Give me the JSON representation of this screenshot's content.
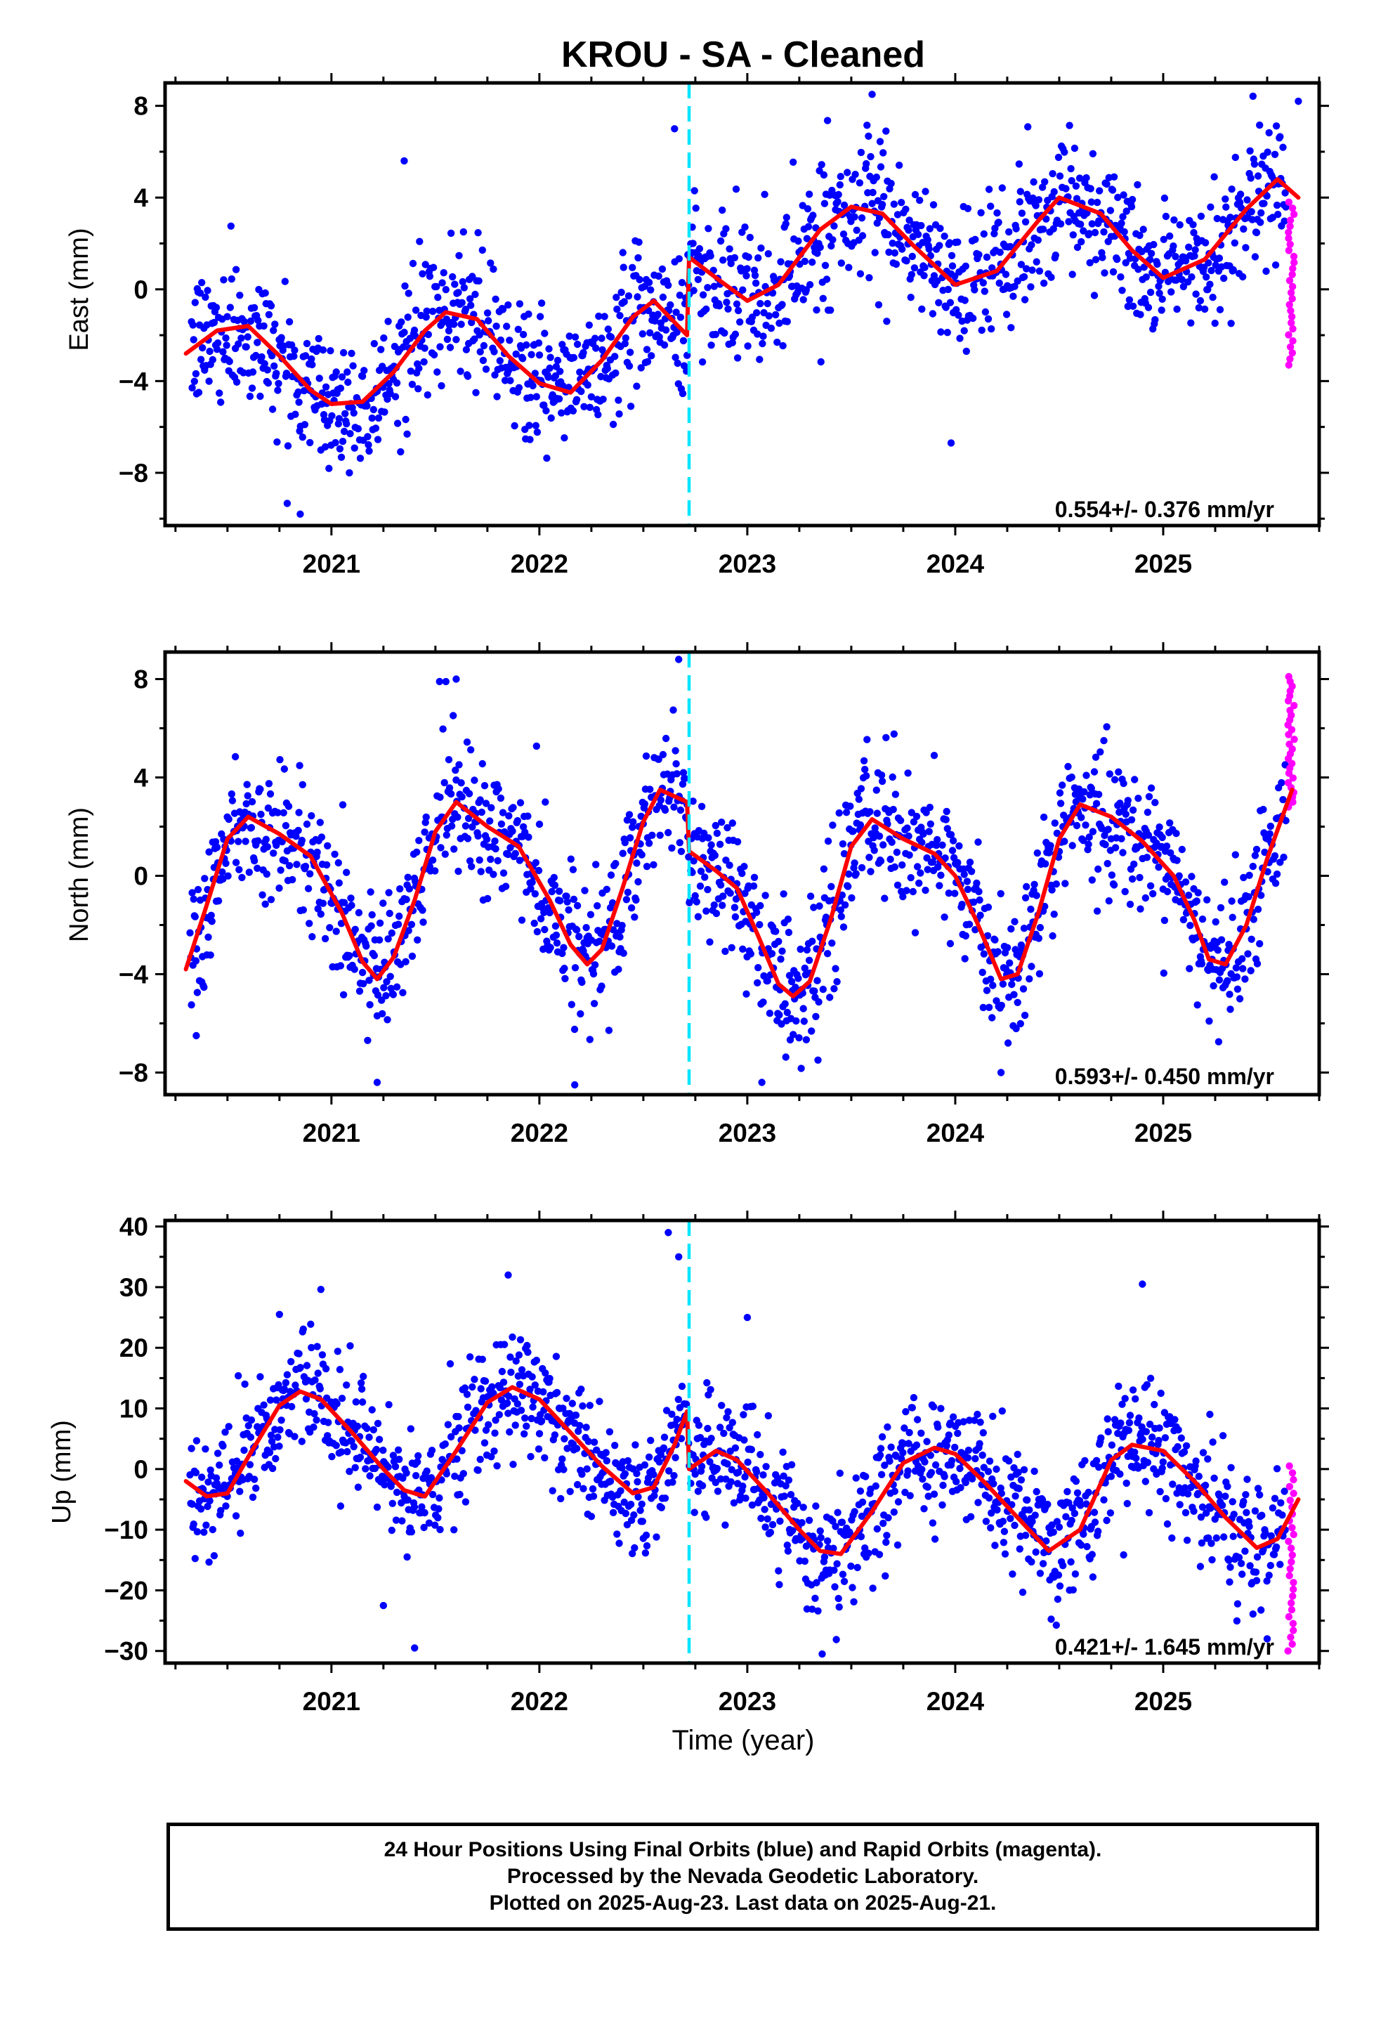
{
  "title": "KROU  - SA - Cleaned",
  "xlabel": "Time (year)",
  "footer": [
    "24 Hour Positions Using Final Orbits (blue) and Rapid Orbits (magenta).",
    "Processed by the Nevada Geodetic Laboratory.",
    "Plotted on 2025-Aug-23. Last data on 2025-Aug-21."
  ],
  "colors": {
    "final": "#0000ff",
    "rapid": "#ff00ff",
    "model": "#ff0000",
    "event": "#00e5ff"
  },
  "chart_data": [
    {
      "type": "scatter",
      "ylabel": "East (mm)",
      "xlim": [
        2020.2,
        2025.75
      ],
      "ylim": [
        -10.3,
        9
      ],
      "xticks": [
        2021,
        2022,
        2023,
        2024,
        2025
      ],
      "yticks": [
        -8,
        -4,
        0,
        4,
        8
      ],
      "yticklabels": [
        "−8",
        "−4",
        "0",
        "4",
        "8"
      ],
      "rate": "0.554+/- 0.376 mm/yr",
      "event_line_x": 2022.72,
      "model": {
        "x": [
          2020.3,
          2020.45,
          2020.6,
          2020.75,
          2020.9,
          2021.0,
          2021.15,
          2021.3,
          2021.45,
          2021.55,
          2021.7,
          2021.85,
          2022.0,
          2022.15,
          2022.3,
          2022.45,
          2022.55,
          2022.71,
          2022.72,
          2022.85,
          2023.0,
          2023.15,
          2023.35,
          2023.5,
          2023.65,
          2023.8,
          2024.0,
          2024.2,
          2024.4,
          2024.5,
          2024.7,
          2024.85,
          2025.0,
          2025.2,
          2025.4,
          2025.55,
          2025.65
        ],
        "y": [
          -2.8,
          -1.8,
          -1.6,
          -2.9,
          -4.4,
          -5.0,
          -4.9,
          -3.6,
          -1.8,
          -1.0,
          -1.3,
          -2.9,
          -4.1,
          -4.5,
          -3.1,
          -1.2,
          -0.5,
          -2.0,
          1.4,
          0.5,
          -0.5,
          0.2,
          2.6,
          3.6,
          3.3,
          1.9,
          0.2,
          0.8,
          3.0,
          4.0,
          3.3,
          1.7,
          0.5,
          1.3,
          3.5,
          4.8,
          4.0
        ]
      },
      "final": {
        "amp": 2.1,
        "phase": 0.0,
        "trend": [
          -3.3,
          2.5
        ],
        "noise": 1.5,
        "outliers": [
          [
            2021.35,
            5.6
          ],
          [
            2022.65,
            7.0
          ],
          [
            2023.6,
            8.5
          ],
          [
            2023.98,
            -6.7
          ],
          [
            2025.65,
            8.2
          ],
          [
            2020.85,
            -9.8
          ]
        ]
      },
      "rapid": {
        "x0": 2025.6,
        "x1": 2025.63,
        "ymin": -3.3,
        "ymax": 3.8
      }
    },
    {
      "type": "scatter",
      "ylabel": "North (mm)",
      "xlim": [
        2020.2,
        2025.75
      ],
      "ylim": [
        -8.9,
        9.1
      ],
      "xticks": [
        2021,
        2022,
        2023,
        2024,
        2025
      ],
      "yticks": [
        -8,
        -4,
        0,
        4,
        8
      ],
      "yticklabels": [
        "−8",
        "−4",
        "0",
        "4",
        "8"
      ],
      "rate": "0.593+/- 0.450 mm/yr",
      "event_line_x": 2022.72,
      "model": {
        "x": [
          2020.3,
          2020.4,
          2020.5,
          2020.6,
          2020.75,
          2020.9,
          2021.05,
          2021.15,
          2021.22,
          2021.3,
          2021.4,
          2021.5,
          2021.6,
          2021.75,
          2021.9,
          2022.05,
          2022.15,
          2022.23,
          2022.3,
          2022.4,
          2022.5,
          2022.58,
          2022.71,
          2022.72,
          2022.85,
          2022.95,
          2023.05,
          2023.15,
          2023.22,
          2023.3,
          2023.4,
          2023.5,
          2023.6,
          2023.75,
          2023.9,
          2024.0,
          2024.1,
          2024.22,
          2024.3,
          2024.4,
          2024.5,
          2024.6,
          2024.75,
          2024.9,
          2025.05,
          2025.15,
          2025.22,
          2025.3,
          2025.4,
          2025.5,
          2025.62
        ],
        "y": [
          -3.8,
          -1.2,
          1.5,
          2.4,
          1.7,
          0.8,
          -1.5,
          -3.5,
          -4.2,
          -3.3,
          -1.0,
          1.8,
          3.0,
          2.0,
          1.2,
          -1.0,
          -2.8,
          -3.6,
          -3.0,
          -0.5,
          2.2,
          3.5,
          3.0,
          1.0,
          0.2,
          -0.5,
          -2.4,
          -4.4,
          -4.9,
          -4.3,
          -1.8,
          1.2,
          2.3,
          1.5,
          0.9,
          0.0,
          -1.8,
          -4.2,
          -4.0,
          -1.5,
          1.5,
          2.9,
          2.4,
          1.4,
          0.0,
          -1.8,
          -3.4,
          -3.6,
          -2.0,
          0.7,
          3.5
        ]
      },
      "final": {
        "amp": 3.2,
        "phase": 0.55,
        "trend": [
          -0.2,
          0.2
        ],
        "noise": 1.4,
        "outliers": [
          [
            2021.52,
            7.9
          ],
          [
            2021.6,
            8.0
          ],
          [
            2022.67,
            8.8
          ],
          [
            2021.22,
            -8.4
          ],
          [
            2022.17,
            -8.5
          ],
          [
            2023.07,
            -8.4
          ],
          [
            2024.22,
            -8.0
          ],
          [
            2020.35,
            -6.5
          ]
        ]
      },
      "rapid": {
        "x0": 2025.6,
        "x1": 2025.63,
        "ymin": 2.8,
        "ymax": 8.1
      }
    },
    {
      "type": "scatter",
      "ylabel": "Up (mm)",
      "xlim": [
        2020.2,
        2025.75
      ],
      "ylim": [
        -32,
        41
      ],
      "xticks": [
        2021,
        2022,
        2023,
        2024,
        2025
      ],
      "yticks": [
        -30,
        -20,
        -10,
        0,
        10,
        20,
        30,
        40
      ],
      "yticklabels": [
        "−30",
        "−20",
        "−10",
        "0",
        "10",
        "20",
        "30",
        "40"
      ],
      "rate": "0.421+/- 1.645 mm/yr",
      "event_line_x": 2022.72,
      "model": {
        "x": [
          2020.3,
          2020.4,
          2020.5,
          2020.6,
          2020.75,
          2020.85,
          2020.95,
          2021.1,
          2021.25,
          2021.35,
          2021.45,
          2021.6,
          2021.75,
          2021.87,
          2022.0,
          2022.15,
          2022.3,
          2022.45,
          2022.55,
          2022.65,
          2022.71,
          2022.72,
          2022.85,
          2022.95,
          2023.1,
          2023.25,
          2023.35,
          2023.45,
          2023.6,
          2023.75,
          2023.9,
          2024.0,
          2024.15,
          2024.3,
          2024.45,
          2024.6,
          2024.75,
          2024.85,
          2025.0,
          2025.15,
          2025.3,
          2025.45,
          2025.55,
          2025.65
        ],
        "y": [
          -2,
          -4.5,
          -4,
          2,
          10.5,
          12.8,
          11.5,
          6,
          0,
          -3.5,
          -4.5,
          3,
          11,
          13.5,
          11.5,
          6,
          0.5,
          -4,
          -3,
          4,
          9.5,
          0,
          3,
          1.5,
          -4,
          -10,
          -13.5,
          -14,
          -7,
          1,
          3.5,
          2.5,
          -2.5,
          -8,
          -13.5,
          -10,
          1.5,
          4,
          3,
          -2,
          -8,
          -13,
          -11.5,
          -5
        ]
      },
      "final": {
        "amp": 8.5,
        "phase": 0.1,
        "trend": [
          2.5,
          -6.5
        ],
        "noise": 5.0,
        "outliers": [
          [
            2022.62,
            39.0
          ],
          [
            2022.67,
            35.0
          ],
          [
            2021.85,
            32.0
          ],
          [
            2024.9,
            30.5
          ],
          [
            2020.75,
            25.5
          ],
          [
            2023.0,
            25.0
          ],
          [
            2021.4,
            -29.5
          ],
          [
            2023.36,
            -30.5
          ],
          [
            2025.5,
            -28.0
          ],
          [
            2021.25,
            -22.5
          ]
        ]
      },
      "rapid": {
        "x0": 2025.6,
        "x1": 2025.63,
        "ymin": -30,
        "ymax": 0.5
      }
    }
  ]
}
